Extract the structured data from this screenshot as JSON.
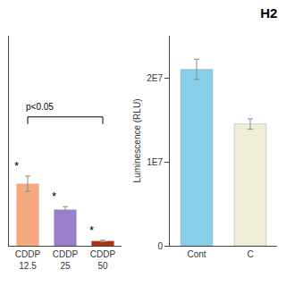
{
  "chart_data": [
    {
      "type": "bar",
      "categories": [
        "CDDP\n12.5",
        "CDDP\n25",
        "CDDP\n50"
      ],
      "values": [
        6500000,
        3800000,
        500000
      ],
      "errors": [
        800000,
        300000,
        80000
      ],
      "colors": [
        "#F4A97F",
        "#9B7EC8",
        "#B03010"
      ],
      "ylim": [
        0,
        22000000
      ],
      "tick_labels": "x",
      "grid": false,
      "annotations": [
        {
          "text": "*",
          "category": "CDDP\n12.5"
        },
        {
          "text": "*",
          "category": "CDDP\n25"
        },
        {
          "text": "*",
          "category": "CDDP\n50"
        }
      ],
      "bracket": {
        "y": 13500000,
        "from": "CDDP\n12.5",
        "to": "CDDP\n50",
        "label": "p<0.05"
      }
    },
    {
      "type": "bar",
      "title": "H2",
      "categories": [
        "Cont",
        "C"
      ],
      "values": [
        21000000,
        14500000
      ],
      "errors": [
        1200000,
        600000
      ],
      "colors": [
        "#87CEEB",
        "#F0EED8"
      ],
      "ylabel": "Luminescence (RLU)",
      "ylim": [
        0,
        25000000
      ],
      "yticks": [
        0,
        {
          "value": 10000000,
          "label": "1E7"
        },
        {
          "value": 20000000,
          "label": "2E7"
        }
      ],
      "grid": false
    }
  ]
}
